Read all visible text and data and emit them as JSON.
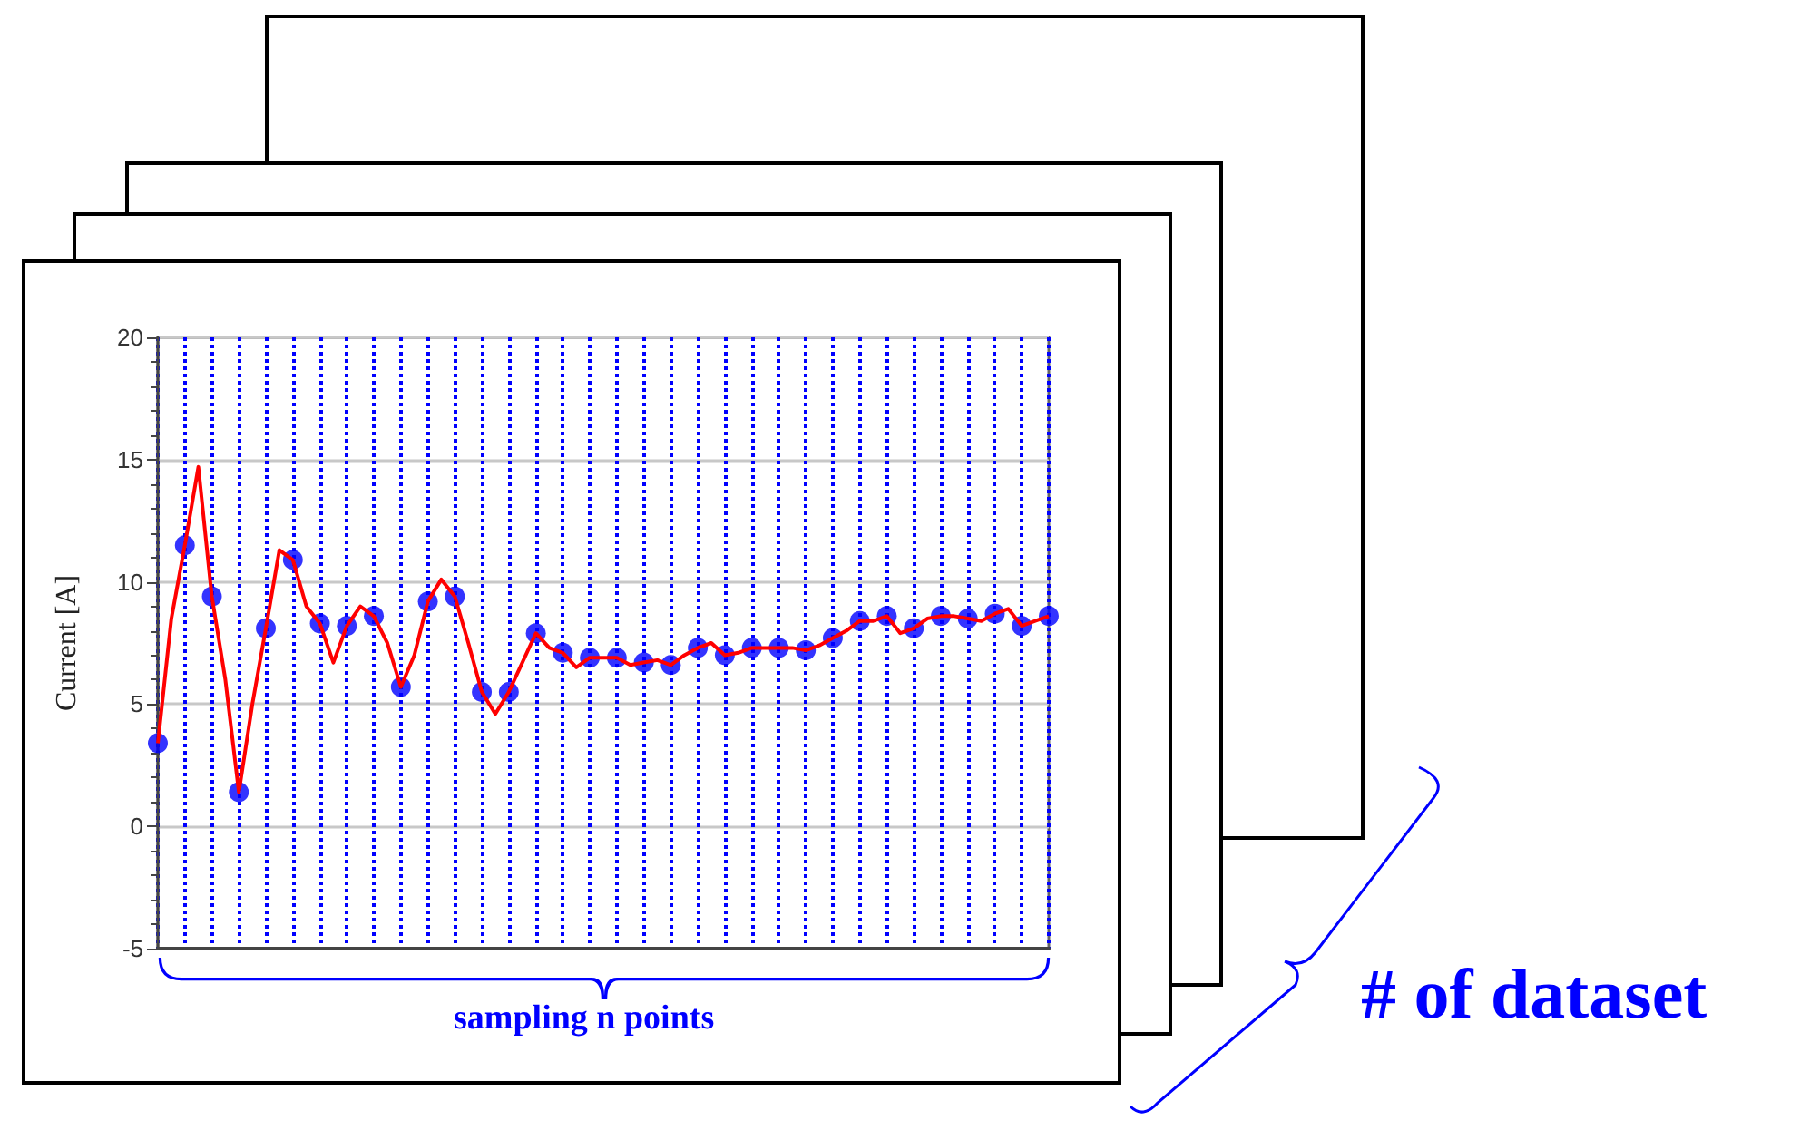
{
  "chart_data": {
    "type": "line",
    "ylabel": "Current [A]",
    "categories": [
      null,
      null,
      null,
      null,
      null,
      null,
      null,
      null,
      null,
      null,
      null,
      null,
      null,
      null,
      null,
      null,
      null,
      null,
      null,
      null,
      null,
      null,
      null,
      null,
      null,
      null,
      null,
      null,
      null,
      null,
      null,
      null,
      null,
      null,
      null,
      null,
      null,
      null,
      null,
      null,
      null,
      null,
      null,
      null,
      null,
      null,
      null,
      null,
      null,
      null,
      null,
      null,
      null,
      null,
      null,
      null,
      null,
      null,
      null,
      null,
      null,
      null,
      null,
      null,
      null,
      null,
      null
    ],
    "series": [
      {
        "color": "#ff0000",
        "values": [
          3.4,
          8.5,
          11.5,
          14.7,
          9.4,
          6.0,
          1.4,
          5.0,
          8.1,
          11.3,
          10.9,
          9.0,
          8.3,
          6.7,
          8.2,
          9.0,
          8.6,
          7.5,
          5.7,
          7.0,
          9.2,
          10.1,
          9.4,
          7.5,
          5.5,
          4.6,
          5.5,
          6.7,
          7.9,
          7.3,
          7.1,
          6.5,
          6.9,
          6.9,
          6.9,
          6.6,
          6.7,
          6.8,
          6.6,
          7.0,
          7.3,
          7.5,
          7.0,
          7.1,
          7.3,
          7.3,
          7.3,
          7.3,
          7.2,
          7.4,
          7.7,
          8.0,
          8.4,
          8.4,
          8.6,
          7.9,
          8.1,
          8.5,
          8.6,
          8.6,
          8.5,
          8.4,
          8.7,
          8.9,
          8.2,
          8.4,
          8.6
        ]
      },
      {
        "type": "scatter",
        "marker": "circle",
        "color": "#0000ff",
        "values": [
          3.4,
          null,
          11.5,
          null,
          9.4,
          null,
          1.4,
          null,
          8.1,
          null,
          10.9,
          null,
          8.3,
          null,
          8.2,
          null,
          8.6,
          null,
          5.7,
          null,
          9.2,
          null,
          9.4,
          null,
          5.5,
          null,
          5.5,
          null,
          7.9,
          null,
          7.1,
          null,
          6.9,
          null,
          6.9,
          null,
          6.7,
          null,
          6.6,
          null,
          7.3,
          null,
          7.0,
          null,
          7.3,
          null,
          7.3,
          null,
          7.2,
          null,
          7.7,
          null,
          8.4,
          null,
          8.6,
          null,
          8.1,
          null,
          8.6,
          null,
          8.5,
          null,
          8.7,
          null,
          8.2,
          null,
          8.6
        ]
      }
    ],
    "ylim": [
      -5,
      20
    ],
    "yticks": [
      -5,
      0,
      5,
      10,
      15,
      20
    ],
    "grid": true,
    "tick_labels": "y",
    "line_style": "solid",
    "annotations": [
      "sampling  n points",
      "# of dataset"
    ]
  }
}
